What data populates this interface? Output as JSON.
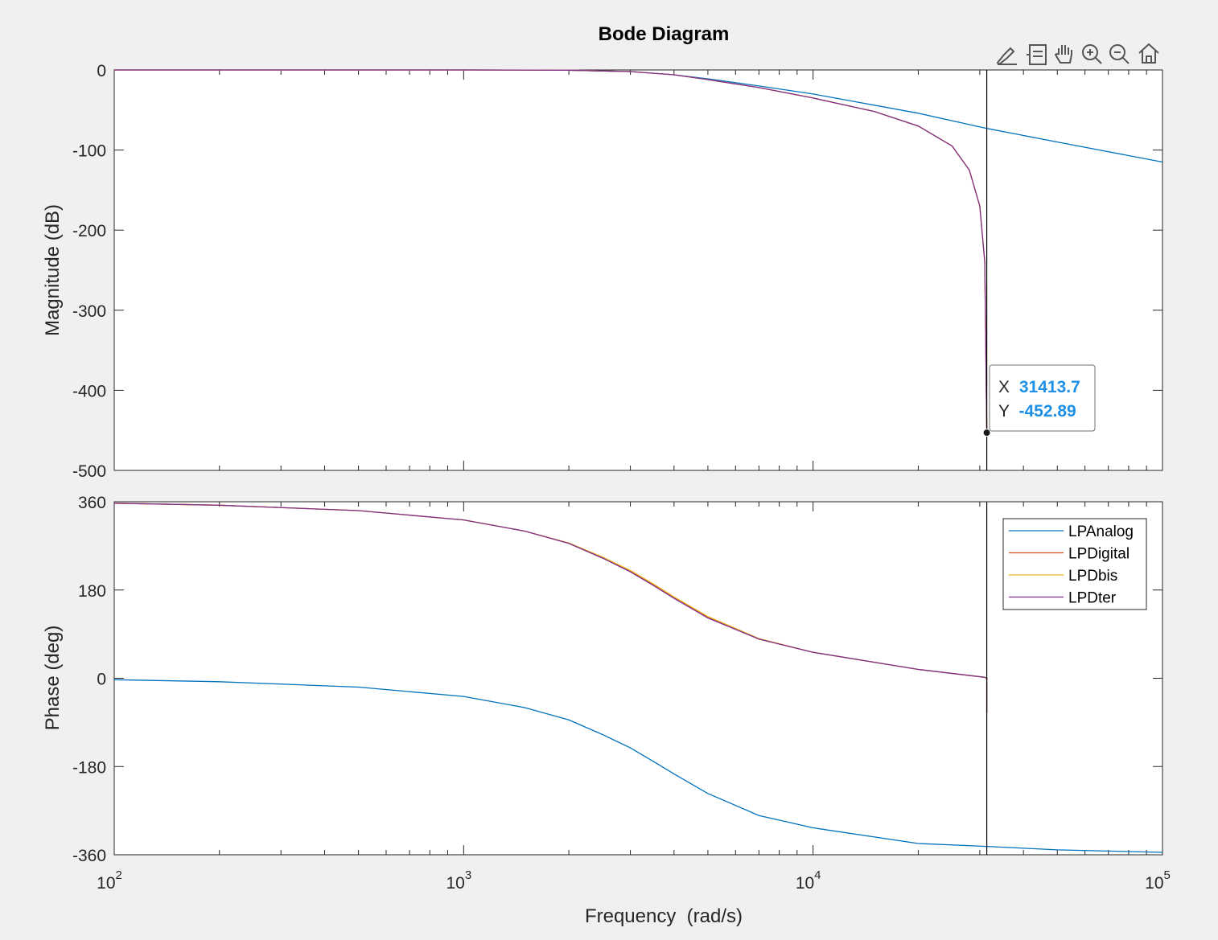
{
  "title": "Bode Diagram",
  "toolbar": {
    "icons": [
      "brush-icon",
      "datatip-icon",
      "pan-icon",
      "zoom-in-icon",
      "zoom-out-icon",
      "home-icon"
    ]
  },
  "colors": {
    "LPAnalog": "#0072bd",
    "LPDigital": "#d95319",
    "LPDbis": "#edb120",
    "LPDter": "#7e2f8e",
    "datatip_value": "#1e90e6",
    "cursor": "#000000"
  },
  "datatip": {
    "x_label": "X",
    "x_value": "31413.7",
    "y_label": "Y",
    "y_value": "-452.89",
    "x": 31413.7,
    "y": -452.89
  },
  "chart_data": [
    {
      "type": "line",
      "name": "magnitude",
      "xscale": "log",
      "xlim": [
        100,
        100000
      ],
      "ylim": [
        -500,
        0
      ],
      "ylabel": "Magnitude (dB)",
      "yticks": [
        0,
        -100,
        -200,
        -300,
        -400,
        -500
      ],
      "ytick_labels": [
        "0",
        "-100",
        "-200",
        "-300",
        "-400",
        "-500"
      ],
      "grid": false,
      "series": [
        {
          "name": "LPAnalog",
          "x": [
            100,
            500,
            1000,
            2000,
            3000,
            4000,
            5000,
            7000,
            10000,
            20000,
            31413.7,
            50000,
            100000
          ],
          "y": [
            0,
            0,
            0,
            -0.3,
            -2,
            -6,
            -11,
            -20,
            -30,
            -54,
            -73,
            -90,
            -115
          ]
        },
        {
          "name": "LPDigital",
          "x": [
            100,
            1000,
            2000,
            3000,
            4000,
            5000,
            7000,
            10000,
            15000,
            20000,
            25000,
            28000,
            30000,
            31000,
            31413.7
          ],
          "y": [
            0,
            0,
            -0.3,
            -2,
            -6,
            -12,
            -22,
            -35,
            -52,
            -70,
            -95,
            -125,
            -170,
            -240,
            -452.89
          ]
        },
        {
          "name": "LPDbis",
          "x": [
            100,
            1000,
            2000,
            3000,
            4000,
            5000,
            7000,
            10000,
            15000,
            20000,
            25000,
            28000,
            30000,
            31000,
            31413.7
          ],
          "y": [
            0,
            0,
            -0.3,
            -2,
            -6,
            -12,
            -22,
            -35,
            -52,
            -70,
            -95,
            -125,
            -170,
            -240,
            -452.89
          ]
        },
        {
          "name": "LPDter",
          "x": [
            100,
            1000,
            2000,
            3000,
            4000,
            5000,
            7000,
            10000,
            15000,
            20000,
            25000,
            28000,
            30000,
            31000,
            31413.7
          ],
          "y": [
            0,
            0,
            -0.3,
            -2,
            -6,
            -12,
            -22,
            -35,
            -52,
            -70,
            -95,
            -125,
            -170,
            -240,
            -452.89
          ]
        }
      ]
    },
    {
      "type": "line",
      "name": "phase",
      "xscale": "log",
      "xlim": [
        100,
        100000
      ],
      "ylim": [
        -360,
        360
      ],
      "xlabel": "Frequency  (rad/s)",
      "ylabel": "Phase (deg)",
      "yticks": [
        360,
        180,
        0,
        -180,
        -360
      ],
      "ytick_labels": [
        "360",
        "180",
        "0",
        "-180",
        "-360"
      ],
      "xticks": [
        100,
        1000,
        10000,
        100000
      ],
      "xtick_labels": [
        {
          "base": "10",
          "exp": "2"
        },
        {
          "base": "10",
          "exp": "3"
        },
        {
          "base": "10",
          "exp": "4"
        },
        {
          "base": "10",
          "exp": "5"
        }
      ],
      "grid": false,
      "legend": {
        "position": "top-right",
        "entries": [
          "LPAnalog",
          "LPDigital",
          "LPDbis",
          "LPDter"
        ]
      },
      "series": [
        {
          "name": "LPAnalog",
          "x": [
            100,
            200,
            500,
            1000,
            1500,
            2000,
            2500,
            3000,
            3500,
            4000,
            5000,
            7000,
            10000,
            20000,
            31413.7,
            50000,
            100000
          ],
          "y": [
            -3,
            -7,
            -18,
            -37,
            -60,
            -85,
            -115,
            -142,
            -170,
            -195,
            -235,
            -280,
            -305,
            -337,
            -343,
            -350,
            -355
          ]
        },
        {
          "name": "LPDigital",
          "x": [
            100,
            200,
            500,
            1000,
            1500,
            2000,
            2500,
            3000,
            3500,
            4000,
            5000,
            7000,
            10000,
            20000,
            31000,
            31413.7,
            31413.7
          ],
          "y": [
            357,
            353,
            342,
            323,
            300,
            275,
            245,
            218,
            190,
            164,
            124,
            80,
            53,
            18,
            2,
            0,
            -70
          ]
        },
        {
          "name": "LPDbis",
          "x": [
            100,
            200,
            500,
            1000,
            1500,
            2000,
            2500,
            3000,
            3500,
            4000,
            5000,
            7000,
            10000,
            20000,
            31000,
            31413.7,
            31413.7
          ],
          "y": [
            357,
            353,
            342,
            323,
            300,
            276,
            247,
            220,
            192,
            166,
            126,
            81,
            53,
            18,
            2,
            0,
            -70
          ]
        },
        {
          "name": "LPDter",
          "x": [
            100,
            200,
            500,
            1000,
            1500,
            2000,
            2500,
            3000,
            3500,
            4000,
            5000,
            7000,
            10000,
            20000,
            31000,
            31413.7,
            31413.7
          ],
          "y": [
            357,
            353,
            342,
            323,
            300,
            275,
            245,
            217,
            189,
            163,
            123,
            80,
            53,
            18,
            2,
            0,
            -70
          ]
        }
      ]
    }
  ]
}
